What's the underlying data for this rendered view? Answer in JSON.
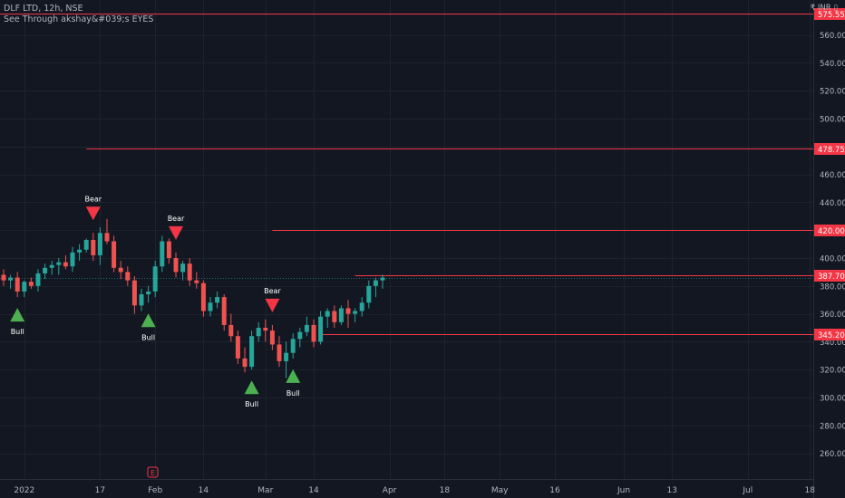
{
  "header": {
    "symbol_line": "DLF LTD, 12h, NSE",
    "indicator_line": "See Through akshay&#039;s EYES",
    "currency": "₹ INR ▯"
  },
  "colors": {
    "background": "#131722",
    "up": "#26a69a",
    "down": "#ef5350",
    "bull_marker": "#4caf50",
    "bear_marker": "#f23645",
    "level_line": "#f23645",
    "axis_text": "#b2b5be"
  },
  "chart_data": {
    "type": "candlestick",
    "title": "DLF LTD, 12h, NSE",
    "ylim": [
      240,
      580
    ],
    "y_ticks": [
      260,
      280,
      300,
      320,
      340,
      360,
      380,
      400,
      420,
      440,
      460,
      480,
      500,
      520,
      540,
      560
    ],
    "y_tick_labels": [
      "260.00",
      "280.00",
      "300.00",
      "320.00",
      "340.00",
      "360.00",
      "380.00",
      "400.00",
      "420.00",
      "440.00",
      "460.00",
      "480.00",
      "500.00",
      "520.00",
      "540.00",
      "560.00"
    ],
    "x_ticks": [
      {
        "label": "2022",
        "index": 3
      },
      {
        "label": "17",
        "index": 14
      },
      {
        "label": "Feb",
        "index": 22
      },
      {
        "label": "14",
        "index": 29
      },
      {
        "label": "Mar",
        "index": 38
      },
      {
        "label": "14",
        "index": 45
      },
      {
        "label": "Apr",
        "index": 56
      },
      {
        "label": "18",
        "index": 64
      },
      {
        "label": "May",
        "index": 72
      },
      {
        "label": "16",
        "index": 80
      },
      {
        "label": "Jun",
        "index": 90
      },
      {
        "label": "13",
        "index": 97
      },
      {
        "label": "Jul",
        "index": 108
      },
      {
        "label": "18",
        "index": 117
      }
    ],
    "x_count": 124,
    "candles": [
      [
        388,
        392,
        380,
        384
      ],
      [
        384,
        388,
        378,
        386
      ],
      [
        386,
        390,
        372,
        376
      ],
      [
        376,
        384,
        372,
        383
      ],
      [
        383,
        386,
        378,
        380
      ],
      [
        380,
        392,
        376,
        389
      ],
      [
        389,
        396,
        385,
        393
      ],
      [
        393,
        398,
        388,
        395
      ],
      [
        395,
        400,
        388,
        397
      ],
      [
        397,
        402,
        392,
        394
      ],
      [
        394,
        408,
        390,
        404
      ],
      [
        404,
        410,
        398,
        406
      ],
      [
        406,
        414,
        404,
        413
      ],
      [
        413,
        418,
        398,
        402
      ],
      [
        402,
        422,
        395,
        418
      ],
      [
        418,
        428,
        410,
        412
      ],
      [
        412,
        416,
        390,
        393
      ],
      [
        393,
        398,
        385,
        390
      ],
      [
        390,
        394,
        380,
        384
      ],
      [
        384,
        387,
        360,
        366
      ],
      [
        366,
        378,
        362,
        374
      ],
      [
        374,
        380,
        368,
        376
      ],
      [
        376,
        398,
        372,
        394
      ],
      [
        394,
        416,
        390,
        412
      ],
      [
        412,
        414,
        396,
        400
      ],
      [
        400,
        404,
        386,
        390
      ],
      [
        390,
        398,
        384,
        396
      ],
      [
        396,
        400,
        380,
        384
      ],
      [
        384,
        390,
        378,
        382
      ],
      [
        382,
        384,
        358,
        362
      ],
      [
        362,
        372,
        358,
        368
      ],
      [
        368,
        376,
        364,
        372
      ],
      [
        372,
        374,
        348,
        352
      ],
      [
        352,
        360,
        340,
        344
      ],
      [
        344,
        348,
        324,
        328
      ],
      [
        328,
        336,
        318,
        322
      ],
      [
        322,
        348,
        320,
        344
      ],
      [
        344,
        354,
        340,
        350
      ],
      [
        350,
        356,
        340,
        348
      ],
      [
        348,
        352,
        334,
        338
      ],
      [
        338,
        344,
        322,
        326
      ],
      [
        326,
        340,
        314,
        332
      ],
      [
        332,
        346,
        328,
        342
      ],
      [
        342,
        350,
        336,
        347
      ],
      [
        347,
        358,
        344,
        352
      ],
      [
        352,
        356,
        336,
        340
      ],
      [
        340,
        362,
        338,
        358
      ],
      [
        358,
        364,
        350,
        362
      ],
      [
        362,
        366,
        350,
        354
      ],
      [
        354,
        366,
        352,
        364
      ],
      [
        364,
        370,
        350,
        360
      ],
      [
        360,
        364,
        354,
        362
      ],
      [
        362,
        372,
        358,
        368
      ],
      [
        368,
        384,
        364,
        380
      ],
      [
        380,
        386,
        372,
        384
      ],
      [
        384,
        388,
        378,
        386
      ]
    ],
    "levels": [
      {
        "value": 575.55,
        "label": "575.55",
        "start_index": 0
      },
      {
        "value": 478.75,
        "label": "478.75",
        "start_index": 12
      },
      {
        "value": 420.0,
        "label": "420.00",
        "start_index": 39
      },
      {
        "value": 387.7,
        "label": "387.70",
        "start_index": 51
      },
      {
        "value": 345.2,
        "label": "345.20",
        "start_index": 46
      }
    ],
    "signals": [
      {
        "type": "Bull",
        "index": 2
      },
      {
        "type": "Bear",
        "index": 13
      },
      {
        "type": "Bull",
        "index": 21
      },
      {
        "type": "Bear",
        "index": 25
      },
      {
        "type": "Bull",
        "index": 36
      },
      {
        "type": "Bear",
        "index": 39
      },
      {
        "type": "Bull",
        "index": 42
      }
    ]
  }
}
